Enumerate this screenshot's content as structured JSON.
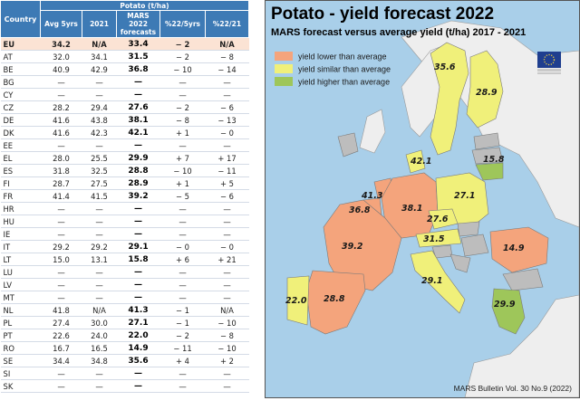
{
  "table": {
    "col_country": "Country",
    "group_header": "Potato (t/ha)",
    "col_avg": "Avg 5yrs",
    "col_2021": "2021",
    "col_mars": [
      "MARS",
      "2022",
      "forecasts"
    ],
    "col_pct_avg": "%22/5yrs",
    "col_pct_2021": "%22/21",
    "rows": [
      {
        "c": "EU",
        "avg": "34.2",
        "y21": "N/A",
        "mars": "33.4",
        "p5": "− 2",
        "p21": "N/A"
      },
      {
        "c": "AT",
        "avg": "32.0",
        "y21": "34.1",
        "mars": "31.5",
        "p5": "− 2",
        "p21": "− 8"
      },
      {
        "c": "BE",
        "avg": "40.9",
        "y21": "42.9",
        "mars": "36.8",
        "p5": "− 10",
        "p21": "− 14"
      },
      {
        "c": "BG",
        "avg": "—",
        "y21": "—",
        "mars": "—",
        "p5": "—",
        "p21": "—"
      },
      {
        "c": "CY",
        "avg": "—",
        "y21": "—",
        "mars": "—",
        "p5": "—",
        "p21": "—"
      },
      {
        "c": "CZ",
        "avg": "28.2",
        "y21": "29.4",
        "mars": "27.6",
        "p5": "− 2",
        "p21": "− 6"
      },
      {
        "c": "DE",
        "avg": "41.6",
        "y21": "43.8",
        "mars": "38.1",
        "p5": "− 8",
        "p21": "− 13"
      },
      {
        "c": "DK",
        "avg": "41.6",
        "y21": "42.3",
        "mars": "42.1",
        "p5": "+ 1",
        "p21": "− 0"
      },
      {
        "c": "EE",
        "avg": "—",
        "y21": "—",
        "mars": "—",
        "p5": "—",
        "p21": "—"
      },
      {
        "c": "EL",
        "avg": "28.0",
        "y21": "25.5",
        "mars": "29.9",
        "p5": "+ 7",
        "p21": "+ 17"
      },
      {
        "c": "ES",
        "avg": "31.8",
        "y21": "32.5",
        "mars": "28.8",
        "p5": "− 10",
        "p21": "− 11"
      },
      {
        "c": "FI",
        "avg": "28.7",
        "y21": "27.5",
        "mars": "28.9",
        "p5": "+ 1",
        "p21": "+ 5"
      },
      {
        "c": "FR",
        "avg": "41.4",
        "y21": "41.5",
        "mars": "39.2",
        "p5": "− 5",
        "p21": "− 6"
      },
      {
        "c": "HR",
        "avg": "—",
        "y21": "—",
        "mars": "—",
        "p5": "—",
        "p21": "—"
      },
      {
        "c": "HU",
        "avg": "—",
        "y21": "—",
        "mars": "—",
        "p5": "—",
        "p21": "—"
      },
      {
        "c": "IE",
        "avg": "—",
        "y21": "—",
        "mars": "—",
        "p5": "—",
        "p21": "—"
      },
      {
        "c": "IT",
        "avg": "29.2",
        "y21": "29.2",
        "mars": "29.1",
        "p5": "− 0",
        "p21": "− 0"
      },
      {
        "c": "LT",
        "avg": "15.0",
        "y21": "13.1",
        "mars": "15.8",
        "p5": "+ 6",
        "p21": "+ 21"
      },
      {
        "c": "LU",
        "avg": "—",
        "y21": "—",
        "mars": "—",
        "p5": "—",
        "p21": "—"
      },
      {
        "c": "LV",
        "avg": "—",
        "y21": "—",
        "mars": "—",
        "p5": "—",
        "p21": "—"
      },
      {
        "c": "MT",
        "avg": "—",
        "y21": "—",
        "mars": "—",
        "p5": "—",
        "p21": "—"
      },
      {
        "c": "NL",
        "avg": "41.8",
        "y21": "N/A",
        "mars": "41.3",
        "p5": "− 1",
        "p21": "N/A"
      },
      {
        "c": "PL",
        "avg": "27.4",
        "y21": "30.0",
        "mars": "27.1",
        "p5": "− 1",
        "p21": "− 10"
      },
      {
        "c": "PT",
        "avg": "22.6",
        "y21": "24.0",
        "mars": "22.0",
        "p5": "− 2",
        "p21": "− 8"
      },
      {
        "c": "RO",
        "avg": "16.7",
        "y21": "16.5",
        "mars": "14.9",
        "p5": "− 11",
        "p21": "− 10"
      },
      {
        "c": "SE",
        "avg": "34.4",
        "y21": "34.8",
        "mars": "35.6",
        "p5": "+ 4",
        "p21": "+ 2"
      },
      {
        "c": "SI",
        "avg": "—",
        "y21": "—",
        "mars": "—",
        "p5": "—",
        "p21": "—"
      },
      {
        "c": "SK",
        "avg": "—",
        "y21": "—",
        "mars": "—",
        "p5": "—",
        "p21": "—"
      }
    ]
  },
  "map": {
    "title": "Potato - yield forecast 2022",
    "subtitle": "MARS forecast versus average yield (t/ha) 2017 - 2021",
    "source": "MARS Bulletin Vol. 30 No.9 (2022)",
    "legend": [
      {
        "label": "yield lower than average",
        "color": "#f4a47c"
      },
      {
        "label": "yield similar than average",
        "color": "#f0f07a"
      },
      {
        "label": "yield higher than average",
        "color": "#9ec65a"
      }
    ],
    "values": [
      {
        "country": "SE",
        "value": "35.6"
      },
      {
        "country": "FI",
        "value": "28.9"
      },
      {
        "country": "DK",
        "value": "42.1"
      },
      {
        "country": "LT",
        "value": "15.8"
      },
      {
        "country": "NL",
        "value": "41.3"
      },
      {
        "country": "BE",
        "value": "36.8"
      },
      {
        "country": "DE",
        "value": "38.1"
      },
      {
        "country": "PL",
        "value": "27.1"
      },
      {
        "country": "CZ",
        "value": "27.6"
      },
      {
        "country": "AT",
        "value": "31.5"
      },
      {
        "country": "FR",
        "value": "39.2"
      },
      {
        "country": "RO",
        "value": "14.9"
      },
      {
        "country": "IT",
        "value": "29.1"
      },
      {
        "country": "PT",
        "value": "22.0"
      },
      {
        "country": "ES",
        "value": "28.8"
      },
      {
        "country": "EL",
        "value": "29.9"
      }
    ],
    "colors": {
      "sea": "#a9cfe9",
      "non_eu": "#eeeeee",
      "no_data": "#bdbdbd",
      "border": "#7a7a7a"
    }
  },
  "chart_data": {
    "type": "table",
    "title": "Potato (t/ha)",
    "columns": [
      "Country",
      "Avg 5yrs",
      "2021",
      "MARS 2022 forecasts",
      "%22/5yrs",
      "%22/21"
    ],
    "rows": [
      [
        "EU",
        34.2,
        "N/A",
        33.4,
        -2,
        "N/A"
      ],
      [
        "AT",
        32.0,
        34.1,
        31.5,
        -2,
        -8
      ],
      [
        "BE",
        40.9,
        42.9,
        36.8,
        -10,
        -14
      ],
      [
        "CZ",
        28.2,
        29.4,
        27.6,
        -2,
        -6
      ],
      [
        "DE",
        41.6,
        43.8,
        38.1,
        -8,
        -13
      ],
      [
        "DK",
        41.6,
        42.3,
        42.1,
        1,
        0
      ],
      [
        "EL",
        28.0,
        25.5,
        29.9,
        7,
        17
      ],
      [
        "ES",
        31.8,
        32.5,
        28.8,
        -10,
        -11
      ],
      [
        "FI",
        28.7,
        27.5,
        28.9,
        1,
        5
      ],
      [
        "FR",
        41.4,
        41.5,
        39.2,
        -5,
        -6
      ],
      [
        "IT",
        29.2,
        29.2,
        29.1,
        0,
        0
      ],
      [
        "LT",
        15.0,
        13.1,
        15.8,
        6,
        21
      ],
      [
        "NL",
        41.8,
        "N/A",
        41.3,
        -1,
        "N/A"
      ],
      [
        "PL",
        27.4,
        30.0,
        27.1,
        -1,
        -10
      ],
      [
        "PT",
        22.6,
        24.0,
        22.0,
        -2,
        -8
      ],
      [
        "RO",
        16.7,
        16.5,
        14.9,
        -11,
        -10
      ],
      [
        "SE",
        34.4,
        34.8,
        35.6,
        4,
        2
      ]
    ]
  }
}
